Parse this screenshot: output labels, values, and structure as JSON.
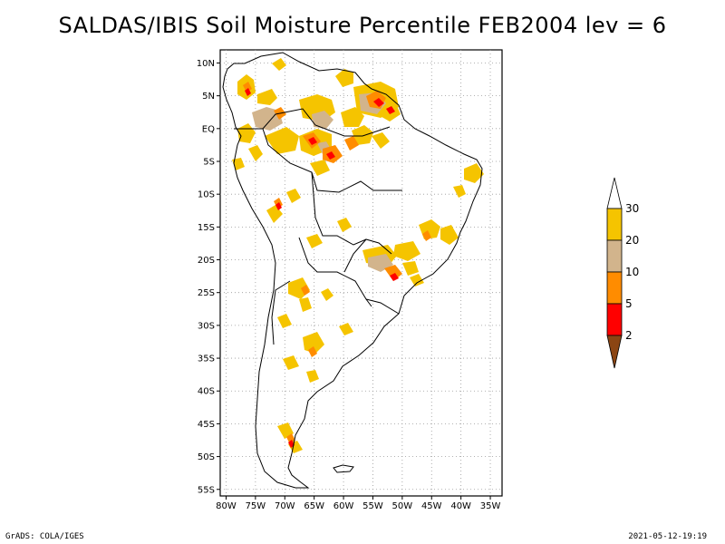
{
  "title": "SALDAS/IBIS Soil Moisture Percentile FEB2004 lev = 6",
  "footer": {
    "left": "GrADS: COLA/IGES",
    "right": "2021-05-12-19:19"
  },
  "axes": {
    "lat_labels": [
      "10N",
      "5N",
      "EQ",
      "5S",
      "10S",
      "15S",
      "20S",
      "25S",
      "30S",
      "35S",
      "40S",
      "45S",
      "50S",
      "55S"
    ],
    "lat_values": [
      10,
      5,
      0,
      -5,
      -10,
      -15,
      -20,
      -25,
      -30,
      -35,
      -40,
      -45,
      -50,
      -55
    ],
    "lon_labels": [
      "80W",
      "75W",
      "70W",
      "65W",
      "60W",
      "55W",
      "50W",
      "45W",
      "40W",
      "35W"
    ],
    "lon_values": [
      -80,
      -75,
      -70,
      -65,
      -60,
      -55,
      -50,
      -45,
      -40,
      -35
    ],
    "lon_range": [
      -81,
      -33
    ],
    "lat_range": [
      -56,
      12
    ],
    "grid": "dotted"
  },
  "colorbar": {
    "labels": [
      "30",
      "20",
      "10",
      "5",
      "2"
    ],
    "colors": {
      "c30": "#ffffff",
      "c20_30": "#f5c400",
      "c10_20": "#d2b48c",
      "c5_10": "#ff8c00",
      "c2_5": "#ff0000",
      "c0_2": "#8b4513"
    }
  },
  "colors": {
    "yellow": "#f5c400",
    "tan": "#d2b48c",
    "orange": "#ff8c00",
    "red": "#ff0000",
    "brown": "#8b4513"
  }
}
